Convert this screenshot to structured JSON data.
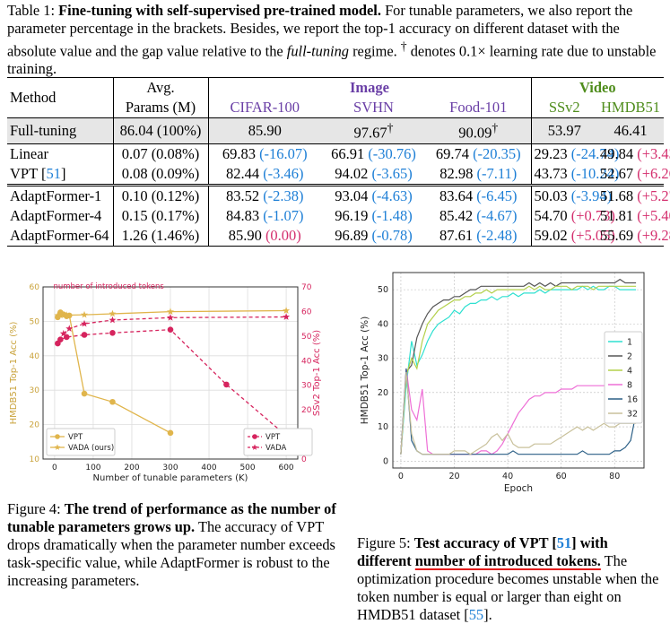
{
  "table_caption": {
    "label": "Table 1:",
    "bold": "Fine-tuning with self-supervised pre-trained model.",
    "text1": " For tunable parameters, we also report the parameter percentage in the brackets. Besides, we report the top-1 accuracy on different dataset with the absolute value and the gap value relative to the ",
    "italic": "full-tuning",
    "text2": " regime. ",
    "dagger": "†",
    "text3": " denotes 0.1× learning rate due to unstable training."
  },
  "table": {
    "headers": {
      "method": "Method",
      "avg": "Avg.",
      "params": "Params (M)",
      "image": "Image",
      "video": "Video",
      "cifar": "CIFAR-100",
      "svhn": "SVHN",
      "food": "Food-101",
      "ssv2": "SSv2",
      "hmdb": "HMDB51"
    },
    "rows": [
      {
        "method": "Full-tuning",
        "params": "86.04 (100%)",
        "cifar": "85.90",
        "cifar_gap": "",
        "svhn": "97.67",
        "svhn_sup": "†",
        "svhn_gap": "",
        "food": "90.09",
        "food_sup": "†",
        "food_gap": "",
        "ssv2": "53.97",
        "ssv2_gap": "",
        "hmdb": "46.41",
        "hmdb_gap": ""
      },
      {
        "method": "Linear",
        "params": "0.07 (0.08%)",
        "cifar": "69.83",
        "cifar_gap": "(-16.07)",
        "svhn": "66.91",
        "svhn_sup": "",
        "svhn_gap": "(-30.76)",
        "food": "69.74",
        "food_sup": "",
        "food_gap": "(-20.35)",
        "ssv2": "29.23",
        "ssv2_gap": "(-24.74)",
        "hmdb": "49.84",
        "hmdb_gap": "(+3.43)"
      },
      {
        "method": "VPT [",
        "cite": "51",
        "method_end": "]",
        "params": "0.08 (0.09%)",
        "cifar": "82.44",
        "cifar_gap": "(-3.46)",
        "svhn": "94.02",
        "svhn_sup": "",
        "svhn_gap": "(-3.65)",
        "food": "82.98",
        "food_sup": "",
        "food_gap": "(-7.11)",
        "ssv2": "43.73",
        "ssv2_gap": "(-10.24)",
        "hmdb": "52.67",
        "hmdb_gap": "(+6.26)"
      },
      {
        "method": "AdaptFormer-1",
        "params": "0.10 (0.12%)",
        "cifar": "83.52",
        "cifar_gap": "(-2.38)",
        "svhn": "93.04",
        "svhn_sup": "",
        "svhn_gap": "(-4.63)",
        "food": "83.64",
        "food_sup": "",
        "food_gap": "(-6.45)",
        "ssv2": "50.03",
        "ssv2_gap": "(-3.94)",
        "hmdb": "51.68",
        "hmdb_gap": "(+5.27)"
      },
      {
        "method": "AdaptFormer-4",
        "params": "0.15 (0.17%)",
        "cifar": "84.83",
        "cifar_gap": "(-1.07)",
        "svhn": "96.19",
        "svhn_sup": "",
        "svhn_gap": "(-1.48)",
        "food": "85.42",
        "food_sup": "",
        "food_gap": "(-4.67)",
        "ssv2": "54.70",
        "ssv2_gap": "(+0.73)",
        "hmdb": "51.81",
        "hmdb_gap": "(+5.40)"
      },
      {
        "method": "AdaptFormer-64",
        "params": "1.26 (1.46%)",
        "cifar": "85.90",
        "cifar_gap": "(0.00)",
        "svhn": "96.89",
        "svhn_sup": "",
        "svhn_gap": "(-0.78)",
        "food": "87.61",
        "food_sup": "",
        "food_gap": "(-2.48)",
        "ssv2": "59.02",
        "ssv2_gap": "(+5.05)",
        "hmdb": "55.69",
        "hmdb_gap": "(+9.28)"
      }
    ]
  },
  "figure4_caption": {
    "label": "Figure 4: ",
    "bold": "The trend of performance as the number of tunable parameters grows up.",
    "text": " The accuracy of VPT drops dramatically when the parameter number exceeds task-specific value, while AdaptFormer is robust to the increasing parameters."
  },
  "figure5_caption": {
    "label": "Figure 5: ",
    "bold1": "Test accuracy of VPT [",
    "cite": "51",
    "bold2": "] with different ",
    "underlined": "number of introduced tokens.",
    "text1": " The optimization procedure becomes unstable when the token number is equal or larger than eight on HMDB51 dataset [",
    "cite2": "55",
    "text2": "]."
  },
  "chart_data": [
    {
      "type": "line",
      "annotation": "number of introduced tokens",
      "xlabel": "Number of tunable parameters (K)",
      "ylabel": "HMDB51 Top-1 Acc (%)",
      "y2label": "SSv2 Top-1 Acc (%)",
      "xlim": [
        -30,
        630
      ],
      "ylim": [
        10,
        60
      ],
      "y2lim": [
        0,
        70
      ],
      "xticks": [
        0,
        100,
        200,
        300,
        400,
        500,
        600
      ],
      "yticks": [
        10,
        20,
        30,
        40,
        50,
        60
      ],
      "y2ticks": [
        0,
        10,
        20,
        30,
        40,
        50,
        60,
        70
      ],
      "grid": true,
      "legend_left": "lower-left",
      "legend_right": "lower-right",
      "series": [
        {
          "name": "VPT",
          "axis": "left",
          "color": "#e0b54c",
          "marker": "circle",
          "dashed": false,
          "x": [
            8,
            15,
            23,
            31,
            38,
            77,
            150,
            300
          ],
          "y": [
            51.2,
            52.6,
            52.0,
            51.5,
            51.7,
            29.0,
            26.6,
            17.6
          ]
        },
        {
          "name": "VADA (ours)",
          "axis": "left",
          "color": "#e0b54c",
          "marker": "star",
          "dashed": false,
          "x": [
            8,
            15,
            31,
            77,
            150,
            300,
            600
          ],
          "y": [
            51.7,
            51.7,
            51.8,
            51.9,
            52.2,
            52.8,
            53.1
          ]
        },
        {
          "name": "VPT",
          "axis": "right",
          "color": "#d6245e",
          "marker": "circle",
          "dashed": true,
          "x": [
            8,
            15,
            31,
            77,
            150,
            300,
            445,
            600
          ],
          "y": [
            47.0,
            48.6,
            49.6,
            50.5,
            51.3,
            52.6,
            30.3,
            9.5
          ]
        },
        {
          "name": "VADA",
          "axis": "right",
          "color": "#d6245e",
          "marker": "star",
          "dashed": true,
          "x": [
            23,
            38,
            77,
            150,
            300,
            600
          ],
          "y": [
            51.0,
            53.0,
            55.0,
            56.5,
            57.5,
            57.8
          ]
        }
      ]
    },
    {
      "type": "line",
      "xlabel": "Epoch",
      "ylabel": "HMDB51 Top-1 Acc (%)",
      "xlim": [
        -3,
        91
      ],
      "ylim": [
        -2,
        55
      ],
      "xticks": [
        0,
        20,
        40,
        60,
        80
      ],
      "yticks": [
        0,
        10,
        20,
        30,
        40,
        50
      ],
      "grid": true,
      "legend": "right",
      "series": [
        {
          "name": "1",
          "color": "#2ee0d0",
          "y": [
            2,
            22,
            35,
            28,
            31,
            35,
            38,
            40,
            41,
            42,
            44,
            43,
            45,
            46,
            46,
            47,
            47,
            48,
            47,
            48,
            48,
            49,
            48,
            49,
            49,
            49,
            50,
            49,
            50,
            50,
            50,
            50,
            50,
            50,
            51,
            50,
            51,
            50,
            50,
            51,
            51,
            50,
            50,
            50,
            50
          ]
        },
        {
          "name": "2",
          "color": "#555555",
          "y": [
            2,
            26,
            28,
            36,
            40,
            43,
            45,
            46,
            47,
            47,
            48,
            48,
            49,
            50,
            50,
            51,
            51,
            51,
            51,
            51,
            51,
            51,
            51,
            51,
            52,
            51,
            52,
            51,
            52,
            51,
            52,
            52,
            52,
            52,
            52,
            52,
            52,
            52,
            52,
            52,
            52,
            53,
            52,
            52,
            52
          ]
        },
        {
          "name": "4",
          "color": "#b3d04a",
          "y": [
            2,
            25,
            30,
            27,
            35,
            40,
            42,
            44,
            45,
            46,
            47,
            47,
            48,
            48,
            49,
            49,
            50,
            49,
            50,
            50,
            50,
            50,
            50,
            50,
            51,
            50,
            51,
            50,
            50,
            51,
            51,
            51,
            50,
            51,
            51,
            51,
            50,
            51,
            51,
            51,
            51,
            51,
            51,
            51,
            51
          ]
        },
        {
          "name": "8",
          "color": "#ee6fd6",
          "y": [
            2,
            27,
            15,
            12,
            21,
            3,
            2,
            2,
            2,
            2,
            2,
            2,
            2,
            2,
            2,
            3,
            3,
            2,
            3,
            5,
            8,
            11,
            14,
            16,
            18,
            19,
            19,
            20,
            20,
            20,
            21,
            21,
            21,
            22,
            22,
            22,
            22,
            22,
            22,
            23,
            23,
            23,
            23,
            22,
            23
          ]
        },
        {
          "name": "16",
          "color": "#2b5f86",
          "y": [
            2,
            27,
            6,
            3,
            2,
            2,
            2,
            2,
            2,
            2,
            2,
            2,
            2,
            2,
            2,
            2,
            2,
            2,
            2,
            2,
            2,
            3,
            2,
            2,
            2,
            2,
            2,
            2,
            2,
            2,
            2,
            2,
            2,
            2,
            3,
            2,
            2,
            2,
            2,
            2,
            3,
            3,
            4,
            6,
            14
          ]
        },
        {
          "name": "32",
          "color": "#c8c09a",
          "y": [
            2,
            26,
            8,
            3,
            2,
            2,
            2,
            2,
            2,
            2,
            3,
            3,
            3,
            2,
            3,
            4,
            5,
            7,
            8,
            6,
            8,
            5,
            4,
            4,
            4,
            5,
            5,
            5,
            5,
            6,
            7,
            8,
            9,
            10,
            9,
            10,
            9,
            10,
            11,
            10,
            10,
            11,
            11,
            11,
            11
          ]
        }
      ]
    }
  ]
}
